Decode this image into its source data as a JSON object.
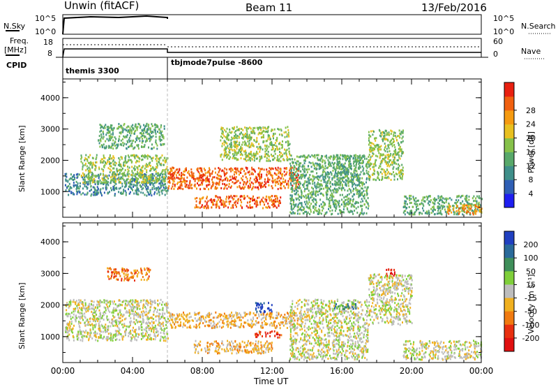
{
  "header": {
    "station": "Unwin (fitACF)",
    "beam": "Beam 11",
    "date": "13/Feb/2016"
  },
  "top_panels": {
    "nsky_label": "N.Sky",
    "nsky_ticks": [
      "10^5",
      "10^0"
    ],
    "freq_label_1": "Freq.",
    "freq_label_2": "[MHz]",
    "freq_ticks": [
      "18",
      "8"
    ],
    "cpid_label": "CPID",
    "nsearch_label": "N.Search",
    "nsearch_ticks": [
      "10^5",
      "10^0"
    ],
    "nave_label": "Nave",
    "nave_ticks": [
      "60",
      "0"
    ],
    "cpid_names": [
      "themis 3300",
      "tbjmode7pulse -8600"
    ]
  },
  "chart_data": [
    {
      "type": "heatmap",
      "title": "",
      "xlabel": "Time UT",
      "ylabel": "Slant Range [km]",
      "x_ticks": [
        "00:00",
        "04:00",
        "08:00",
        "12:00",
        "16:00",
        "20:00",
        "00:00"
      ],
      "y_ticks": [
        "1000",
        "2000",
        "3000",
        "4000"
      ],
      "xlim": [
        0,
        24
      ],
      "ylim": [
        180,
        4600
      ],
      "colorbar": {
        "label": "Power [dB]",
        "ticks": [
          "4",
          "8",
          "12",
          "16",
          "20",
          "24",
          "28"
        ],
        "colors": [
          "#1e1ef0",
          "#2f5fb4",
          "#3f8f8a",
          "#58a86a",
          "#86c14a",
          "#e8c020",
          "#f59a10",
          "#f06010",
          "#e82010"
        ]
      },
      "regions": [
        {
          "t": [
            0.1,
            6.0
          ],
          "r": [
            900,
            1600
          ],
          "level": 2
        },
        {
          "t": [
            1.0,
            6.0
          ],
          "r": [
            1300,
            2200
          ],
          "level": 4
        },
        {
          "t": [
            2.0,
            5.8
          ],
          "r": [
            2400,
            3200
          ],
          "level": 3
        },
        {
          "t": [
            6.0,
            13.5
          ],
          "r": [
            1100,
            1800
          ],
          "level": 7
        },
        {
          "t": [
            7.5,
            12.5
          ],
          "r": [
            500,
            900
          ],
          "level": 7
        },
        {
          "t": [
            9.0,
            13.0
          ],
          "r": [
            2000,
            3100
          ],
          "level": 4
        },
        {
          "t": [
            13.0,
            17.5
          ],
          "r": [
            300,
            2200
          ],
          "level": 3
        },
        {
          "t": [
            15.5,
            17.0
          ],
          "r": [
            1200,
            2200
          ],
          "level": 3
        },
        {
          "t": [
            17.5,
            19.5
          ],
          "r": [
            1400,
            3000
          ],
          "level": 4
        },
        {
          "t": [
            19.5,
            24.0
          ],
          "r": [
            300,
            900
          ],
          "level": 3
        },
        {
          "t": [
            22.0,
            24.0
          ],
          "r": [
            300,
            600
          ],
          "level": 6
        }
      ]
    },
    {
      "type": "heatmap",
      "title": "",
      "xlabel": "Time UT",
      "ylabel": "Slant Range [km]",
      "x_ticks": [
        "00:00",
        "04:00",
        "08:00",
        "12:00",
        "16:00",
        "20:00",
        "00:00"
      ],
      "y_ticks": [
        "1000",
        "2000",
        "3000",
        "4000"
      ],
      "xlim": [
        0,
        24
      ],
      "ylim": [
        180,
        4600
      ],
      "colorbar": {
        "label": "Velocity [m s⁻¹]",
        "ticks": [
          "200",
          "100",
          "50",
          "15",
          "-15",
          "-50",
          "-100",
          "-200"
        ],
        "colors": [
          "#2040c0",
          "#2a6a9a",
          "#3f8f5a",
          "#7fcf3a",
          "#bdbdbd",
          "#f0b020",
          "#f07a10",
          "#e83010",
          "#e01010"
        ]
      },
      "regions": [
        {
          "t": [
            0.1,
            6.0
          ],
          "r": [
            900,
            2200
          ],
          "level": 4
        },
        {
          "t": [
            2.5,
            5.0
          ],
          "r": [
            2800,
            3200
          ],
          "level": 6
        },
        {
          "t": [
            6.0,
            13.5
          ],
          "r": [
            1300,
            1800
          ],
          "level": 5
        },
        {
          "t": [
            7.5,
            12.0
          ],
          "r": [
            500,
            900
          ],
          "level": 5
        },
        {
          "t": [
            11.0,
            12.0
          ],
          "r": [
            1800,
            2100
          ],
          "level": 0
        },
        {
          "t": [
            11.0,
            12.5
          ],
          "r": [
            1000,
            1200
          ],
          "level": 7
        },
        {
          "t": [
            13.0,
            17.5
          ],
          "r": [
            300,
            2200
          ],
          "level": 4
        },
        {
          "t": [
            15.5,
            16.8
          ],
          "r": [
            1900,
            2100
          ],
          "level": 2
        },
        {
          "t": [
            17.5,
            20.0
          ],
          "r": [
            1400,
            3000
          ],
          "level": 4
        },
        {
          "t": [
            18.5,
            19.0
          ],
          "r": [
            2950,
            3200
          ],
          "level": 8
        },
        {
          "t": [
            19.5,
            24.0
          ],
          "r": [
            300,
            900
          ],
          "level": 4
        }
      ]
    }
  ]
}
